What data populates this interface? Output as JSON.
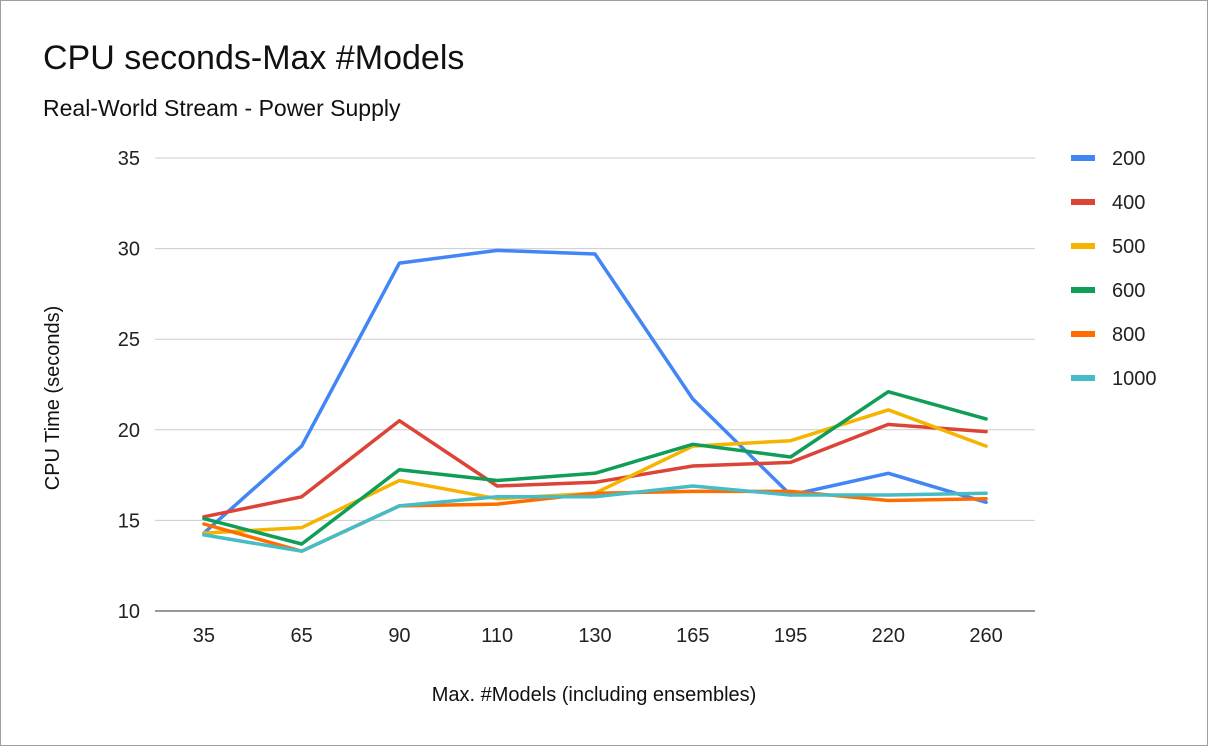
{
  "chart_data": {
    "type": "line",
    "title": "CPU seconds-Max #Models",
    "subtitle": "Real-World Stream - Power Supply",
    "xlabel": "Max. #Models (including ensembles)",
    "ylabel": "CPU Time (seconds)",
    "categories": [
      "35",
      "65",
      "90",
      "110",
      "130",
      "165",
      "195",
      "220",
      "260"
    ],
    "ylim": [
      10,
      35
    ],
    "yticks": [
      10,
      15,
      20,
      25,
      30,
      35
    ],
    "grid": true,
    "legend_position": "right",
    "series": [
      {
        "name": "200",
        "color": "#4285f4",
        "values": [
          14.3,
          19.1,
          29.2,
          29.9,
          29.7,
          21.7,
          16.4,
          17.6,
          16.0
        ]
      },
      {
        "name": "400",
        "color": "#db4437",
        "values": [
          15.2,
          16.3,
          20.5,
          16.9,
          17.1,
          18.0,
          18.2,
          20.3,
          19.9
        ]
      },
      {
        "name": "500",
        "color": "#f4b400",
        "values": [
          14.3,
          14.6,
          17.2,
          16.2,
          16.5,
          19.1,
          19.4,
          21.1,
          19.1
        ]
      },
      {
        "name": "600",
        "color": "#0f9d58",
        "values": [
          15.1,
          13.7,
          17.8,
          17.2,
          17.6,
          19.2,
          18.5,
          22.1,
          20.6
        ]
      },
      {
        "name": "800",
        "color": "#ff6d01",
        "values": [
          14.8,
          13.3,
          15.8,
          15.9,
          16.5,
          16.6,
          16.6,
          16.1,
          16.2
        ]
      },
      {
        "name": "1000",
        "color": "#46bdc6",
        "values": [
          14.2,
          13.3,
          15.8,
          16.3,
          16.3,
          16.9,
          16.4,
          16.4,
          16.5
        ]
      }
    ]
  }
}
